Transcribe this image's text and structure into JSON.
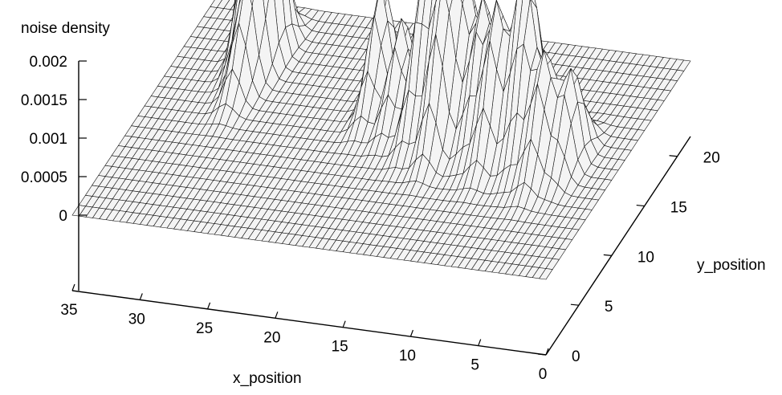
{
  "chart_data": {
    "type": "surface",
    "title": "",
    "zlabel": "noise density",
    "xlabel": "x_position",
    "ylabel": "y_position",
    "xlim": [
      0,
      35
    ],
    "ylim": [
      0,
      22
    ],
    "zlim": [
      0,
      0.002
    ],
    "x_ticks": [
      "35",
      "30",
      "25",
      "20",
      "15",
      "10",
      "5",
      "0"
    ],
    "y_ticks": [
      "0",
      "5",
      "10",
      "15",
      "20"
    ],
    "z_ticks": [
      "0",
      "0.0005",
      "0.001",
      "0.0015",
      "0.002"
    ],
    "grid": false,
    "legend": "none",
    "surface_color": "#f4f4f4",
    "mesh_color": "#111111",
    "peaks": [
      {
        "x": 30,
        "y": 17,
        "z": 0.0021
      },
      {
        "x": 28.5,
        "y": 17,
        "z": 0.002
      },
      {
        "x": 29,
        "y": 14,
        "z": 0.0011
      },
      {
        "x": 19,
        "y": 14,
        "z": 0.0016
      },
      {
        "x": 17,
        "y": 13,
        "z": 0.0013
      },
      {
        "x": 15,
        "y": 12,
        "z": 0.0017
      },
      {
        "x": 14,
        "y": 13,
        "z": 0.0019
      },
      {
        "x": 13,
        "y": 11,
        "z": 0.0018
      },
      {
        "x": 12,
        "y": 13,
        "z": 0.0017
      },
      {
        "x": 10.5,
        "y": 12,
        "z": 0.0018
      },
      {
        "x": 9,
        "y": 11,
        "z": 0.0019
      },
      {
        "x": 7.5,
        "y": 12,
        "z": 0.002
      },
      {
        "x": 6.5,
        "y": 11,
        "z": 0.0017
      },
      {
        "x": 5,
        "y": 10,
        "z": 0.0015
      },
      {
        "x": 3.5,
        "y": 11,
        "z": 0.0012
      }
    ]
  }
}
